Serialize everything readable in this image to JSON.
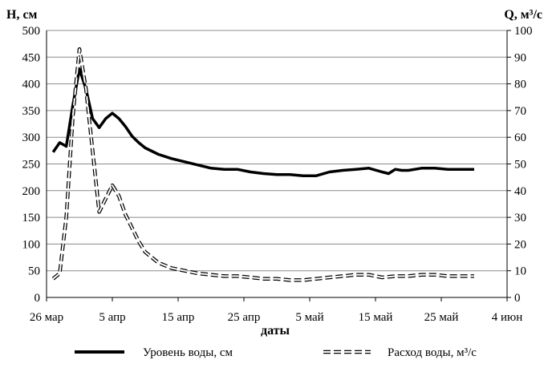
{
  "chart_data": {
    "type": "line",
    "xlabel": "даты",
    "y_left_label": "H, см",
    "y_right_label": "Q, м³/с",
    "y_left_ticks": [
      "0",
      "50",
      "100",
      "150",
      "200",
      "250",
      "300",
      "350",
      "400",
      "450",
      "500"
    ],
    "y_right_ticks": [
      "0",
      "10",
      "20",
      "30",
      "40",
      "50",
      "60",
      "70",
      "80",
      "90",
      "100"
    ],
    "x_ticks": [
      "26 мар",
      "5 апр",
      "15 апр",
      "25 апр",
      "5 май",
      "15 май",
      "25 май",
      "4 июн"
    ],
    "ylim_left": [
      0,
      500
    ],
    "ylim_right": [
      0,
      100
    ],
    "grid": "horizontal",
    "legend_position": "bottom",
    "x_day_range": [
      0,
      70
    ],
    "series": [
      {
        "name": "Уровень воды, см",
        "axis": "left",
        "style": "solid-thick",
        "color": "#000000",
        "x": [
          1,
          2,
          3,
          4,
          5,
          6,
          7,
          8,
          9,
          10,
          11,
          12,
          13,
          14,
          15,
          17,
          19,
          21,
          23,
          25,
          27,
          29,
          31,
          33,
          35,
          37,
          39,
          41,
          43,
          45,
          47,
          49,
          51,
          52,
          53,
          54,
          55,
          57,
          59,
          61,
          63,
          65
        ],
        "y": [
          272,
          290,
          283,
          360,
          428,
          390,
          335,
          318,
          335,
          345,
          335,
          320,
          302,
          290,
          280,
          268,
          260,
          254,
          248,
          242,
          240,
          240,
          235,
          232,
          230,
          230,
          228,
          228,
          235,
          238,
          240,
          242,
          235,
          232,
          240,
          238,
          238,
          242,
          242,
          240,
          240,
          240
        ]
      },
      {
        "name": "Расход воды, м³/с",
        "axis": "right",
        "style": "dashed-double",
        "color": "#000000",
        "x": [
          1,
          2,
          3,
          4,
          5,
          6,
          7,
          8,
          9,
          10,
          11,
          12,
          13,
          14,
          15,
          17,
          19,
          21,
          23,
          25,
          27,
          29,
          31,
          33,
          35,
          37,
          39,
          41,
          43,
          45,
          47,
          49,
          51,
          53,
          55,
          57,
          59,
          61,
          63,
          65
        ],
        "y": [
          7,
          9,
          30,
          68,
          93,
          78,
          55,
          32,
          37,
          42,
          38,
          31,
          26,
          21,
          17,
          13,
          11,
          10,
          9,
          8.5,
          8,
          8,
          7.5,
          7,
          7,
          6.5,
          6.5,
          7,
          7.5,
          8,
          8.5,
          8.5,
          7.5,
          8,
          8,
          8.5,
          8.5,
          8,
          8,
          8
        ]
      }
    ]
  }
}
